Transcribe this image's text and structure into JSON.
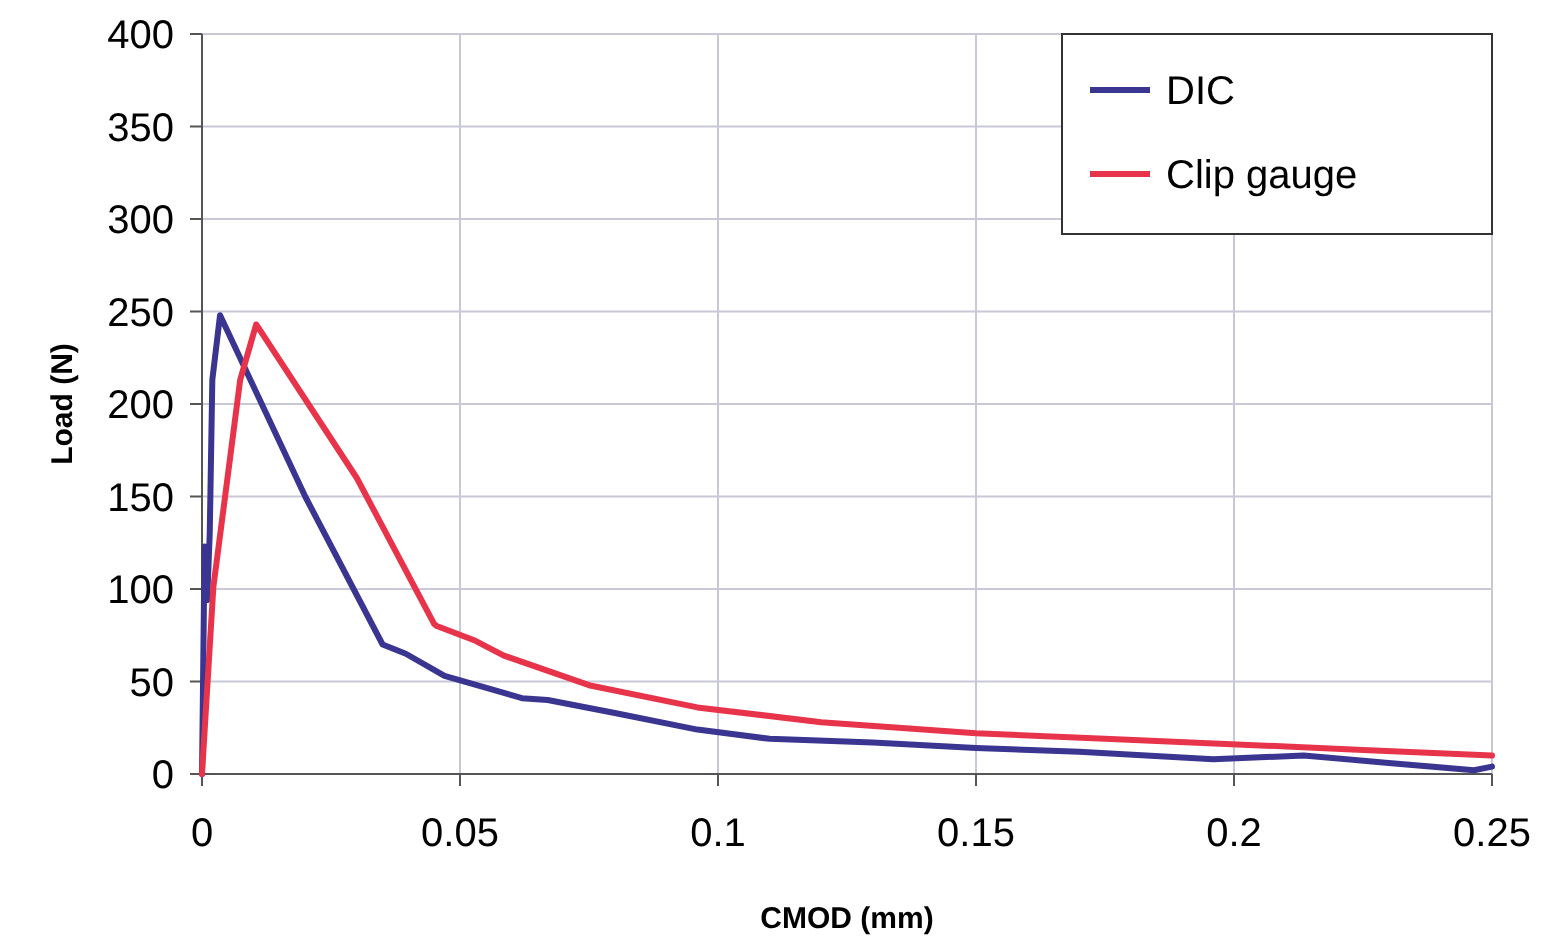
{
  "chart_data": {
    "type": "line",
    "xlabel": "CMOD (mm)",
    "ylabel": "Load (N)",
    "xlim": [
      0,
      0.25
    ],
    "ylim": [
      0,
      400
    ],
    "xticks": [
      0,
      0.05,
      0.1,
      0.15,
      0.2,
      0.25
    ],
    "yticks": [
      0,
      50,
      100,
      150,
      200,
      250,
      300,
      350,
      400
    ],
    "grid": true,
    "legend": "top right",
    "marker": "none",
    "line_style": "solid",
    "series": [
      {
        "name": "DIC",
        "color": "#3a3590",
        "x": [
          0,
          0.0005,
          0.001,
          0.0015,
          0.002,
          0.0035,
          0.02,
          0.035,
          0.0395,
          0.047,
          0.062,
          0.067,
          0.08,
          0.096,
          0.11,
          0.13,
          0.15,
          0.17,
          0.196,
          0.2135,
          0.23,
          0.2465,
          0.25
        ],
        "values": [
          0,
          123,
          94,
          130,
          213,
          248,
          150,
          70,
          65,
          53,
          41,
          40,
          33,
          24,
          19,
          17,
          14,
          12,
          8,
          10,
          6,
          2,
          4
        ]
      },
      {
        "name": "Clip gauge",
        "color": "#e8344a",
        "x": [
          0,
          0.0022,
          0.0074,
          0.0105,
          0.03,
          0.045,
          0.0455,
          0.053,
          0.0585,
          0.075,
          0.096,
          0.12,
          0.15,
          0.175,
          0.2006,
          0.225,
          0.25
        ],
        "values": [
          0,
          101,
          213,
          243,
          160,
          81,
          80,
          72,
          64,
          48,
          36,
          28,
          22,
          19,
          16,
          13,
          10
        ]
      }
    ]
  }
}
